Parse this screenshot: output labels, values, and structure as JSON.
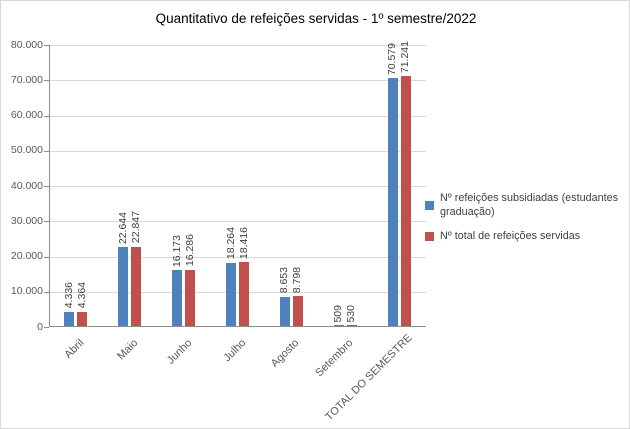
{
  "chart_data": {
    "type": "bar",
    "title": "Quantitativo de refeições servidas - 1º semestre/2022",
    "categories": [
      "Abril",
      "Maio",
      "Junho",
      "Julho",
      "Agosto",
      "Setembro",
      "TOTAL DO SEMESTRE"
    ],
    "series": [
      {
        "name": "Nº refeições subsidiadas (estudantes graduação)",
        "color": "#4F81BD",
        "values": [
          4336,
          22644,
          16173,
          18264,
          8653,
          509,
          70579
        ]
      },
      {
        "name": "Nº total de refeições servidas",
        "color": "#C0504D",
        "values": [
          4364,
          22847,
          16286,
          18416,
          8798,
          530,
          71241
        ]
      }
    ],
    "ylim": [
      0,
      80000
    ],
    "ytick_step": 10000,
    "ytick_labels": [
      "0",
      "10.000",
      "20.000",
      "30.000",
      "40.000",
      "50.000",
      "60.000",
      "70.000",
      "80.000"
    ],
    "grid": true,
    "legend_position": "right",
    "value_label_format": "thousands-dot",
    "colors": {
      "gridline": "#d9d9d9",
      "axis": "#8c8c8c",
      "tick_text": "#595959",
      "value_text": "#404040"
    }
  }
}
